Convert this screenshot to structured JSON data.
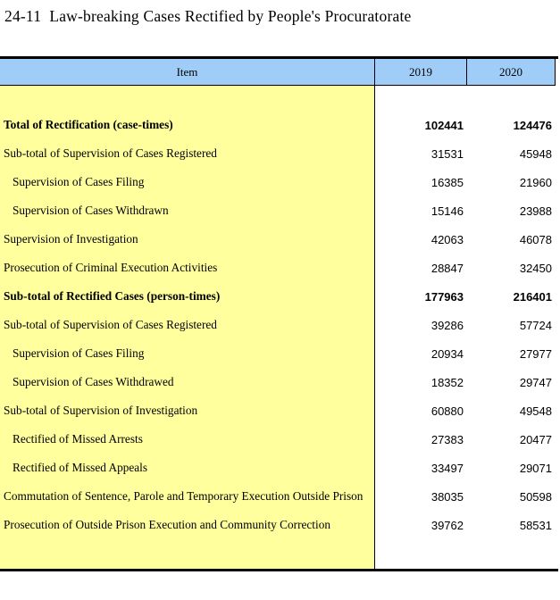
{
  "title": "24-11  Law-breaking Cases Rectified by People's Procuratorate",
  "colors": {
    "header_bg": "#A0CDF8",
    "item_column_bg": "#FFFF9E",
    "border": "#000000",
    "text": "#000000"
  },
  "table": {
    "columns": [
      "Item",
      "2019",
      "2020"
    ],
    "rows": [
      {
        "item": "Total of Rectification (case-times)",
        "y2019": "102441",
        "y2020": "124476"
      },
      {
        "item": "Sub-total of Supervision of Cases Registered",
        "y2019": "31531",
        "y2020": "45948"
      },
      {
        "item": "Supervision of Cases Filing",
        "y2019": "16385",
        "y2020": "21960"
      },
      {
        "item": "Supervision of Cases Withdrawn",
        "y2019": "15146",
        "y2020": "23988"
      },
      {
        "item": "Supervision of Investigation",
        "y2019": "42063",
        "y2020": "46078"
      },
      {
        "item": "Prosecution of Criminal Execution Activities",
        "y2019": "28847",
        "y2020": "32450"
      },
      {
        "item": "Sub-total of Rectified Cases (person-times)",
        "y2019": "177963",
        "y2020": "216401"
      },
      {
        "item": "Sub-total of Supervision of Cases Registered",
        "y2019": "39286",
        "y2020": "57724"
      },
      {
        "item": "Supervision of Cases Filing",
        "y2019": "20934",
        "y2020": "27977"
      },
      {
        "item": "Supervision of Cases Withdrawed",
        "y2019": "18352",
        "y2020": "29747"
      },
      {
        "item": "Sub-total of Supervision of Investigation",
        "y2019": "60880",
        "y2020": "49548"
      },
      {
        "item": "Rectified of Missed Arrests",
        "y2019": "27383",
        "y2020": "20477"
      },
      {
        "item": "Rectified of Missed Appeals",
        "y2019": "33497",
        "y2020": "29071"
      },
      {
        "item": "Commutation of Sentence, Parole and Temporary Execution Outside Prison",
        "y2019": "38035",
        "y2020": "50598"
      },
      {
        "item": "Prosecution of Outside Prison Execution and Community Correction",
        "y2019": "39762",
        "y2020": "58531"
      }
    ]
  }
}
